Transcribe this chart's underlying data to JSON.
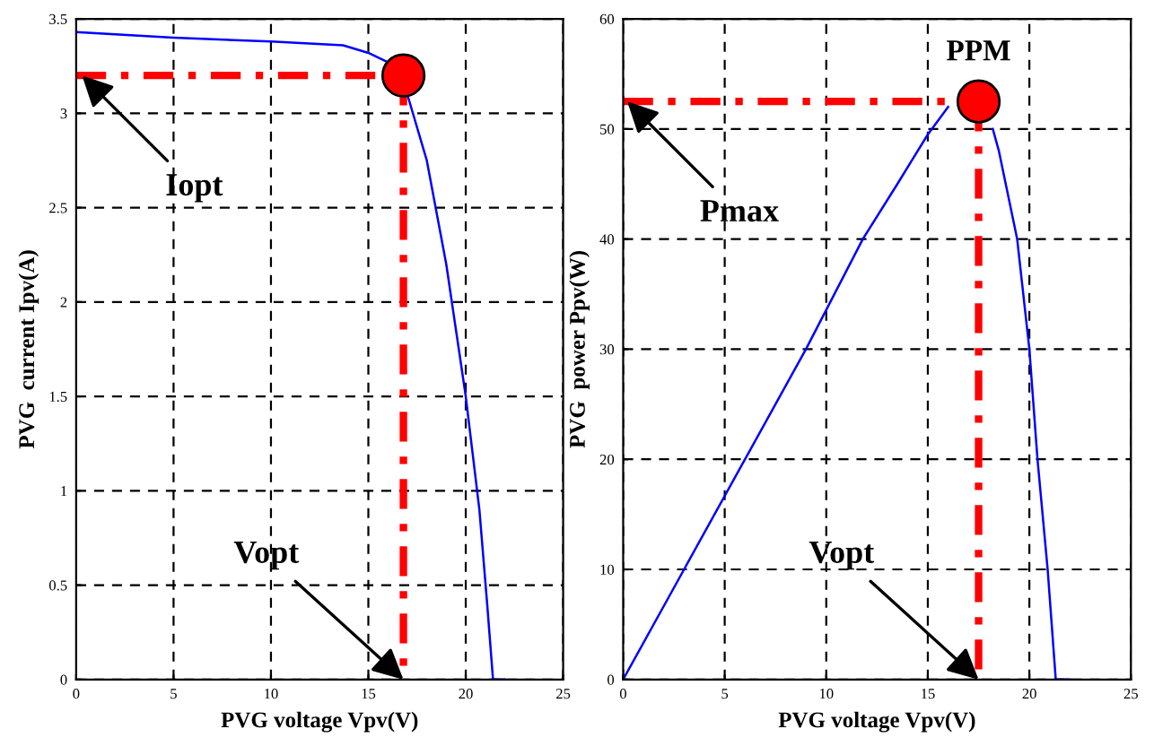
{
  "chart_data": [
    {
      "type": "line",
      "xlabel": "PVG voltage Vpv(V)",
      "ylabel": "PVG  current Ipv(A)",
      "xlim": [
        0,
        25
      ],
      "ylim": [
        0,
        3.5
      ],
      "xticks": [
        0,
        5,
        10,
        15,
        20,
        25
      ],
      "yticks": [
        0,
        0.5,
        1,
        1.5,
        2,
        2.5,
        3,
        3.5
      ],
      "grid": true,
      "marker": "none",
      "series": [
        {
          "color": "#0000ff",
          "line_style": "solid",
          "x": [
            0,
            5,
            10,
            13.7,
            15,
            16,
            17,
            18,
            19,
            20,
            20.7,
            21.1,
            21.4,
            22
          ],
          "values": [
            3.43,
            3.4,
            3.38,
            3.36,
            3.32,
            3.27,
            3.1,
            2.75,
            2.2,
            1.5,
            0.9,
            0.4,
            0,
            0
          ]
        },
        {
          "color": "#ff0000",
          "line_style": "dashdot",
          "x": [
            0,
            16.8
          ],
          "values": [
            3.2,
            3.2
          ]
        },
        {
          "color": "#ff0000",
          "line_style": "dashdot",
          "x": [
            16.8,
            16.8
          ],
          "values": [
            3.2,
            0
          ]
        },
        {
          "type": "scatter",
          "color": "#ff0000",
          "marker": "circle",
          "x": [
            16.8
          ],
          "values": [
            3.2
          ]
        }
      ],
      "annotations": [
        {
          "text": "Iopt",
          "x": 0.3,
          "y": 3.2
        },
        {
          "text": "Vopt",
          "x": 16.8,
          "y": 0
        }
      ]
    },
    {
      "type": "line",
      "xlabel": "PVG voltage Vpv(V)",
      "ylabel": "PVG  power Ppv(W)",
      "xlim": [
        0,
        25
      ],
      "ylim": [
        0,
        60
      ],
      "xticks": [
        0,
        5,
        10,
        15,
        20,
        25
      ],
      "yticks": [
        0,
        10,
        20,
        30,
        40,
        50,
        60
      ],
      "grid": true,
      "marker": "none",
      "series": [
        {
          "color": "#0000ff",
          "line_style": "solid",
          "x": [
            0,
            3,
            6,
            9,
            11.8,
            13.5,
            15,
            16,
            17,
            17.8,
            18.2,
            18.5,
            19.4,
            20,
            20.4,
            20.9,
            21.3,
            22
          ],
          "values": [
            0,
            10,
            20,
            30,
            40,
            45,
            49.5,
            52,
            null,
            null,
            50,
            48,
            40,
            30,
            20,
            10,
            0,
            0
          ]
        },
        {
          "color": "#ff0000",
          "line_style": "dashdot",
          "x": [
            0,
            17.5
          ],
          "values": [
            52.5,
            52.5
          ]
        },
        {
          "color": "#ff0000",
          "line_style": "dashdot",
          "x": [
            17.5,
            17.5
          ],
          "values": [
            52.5,
            0
          ]
        },
        {
          "type": "scatter",
          "name": "PPM",
          "color": "#ff0000",
          "marker": "circle",
          "x": [
            17.5
          ],
          "values": [
            52.5
          ]
        }
      ],
      "annotations": [
        {
          "text": "Pmax",
          "x": 0.2,
          "y": 52.5
        },
        {
          "text": "Vopt",
          "x": 17.5,
          "y": 0
        }
      ]
    }
  ]
}
